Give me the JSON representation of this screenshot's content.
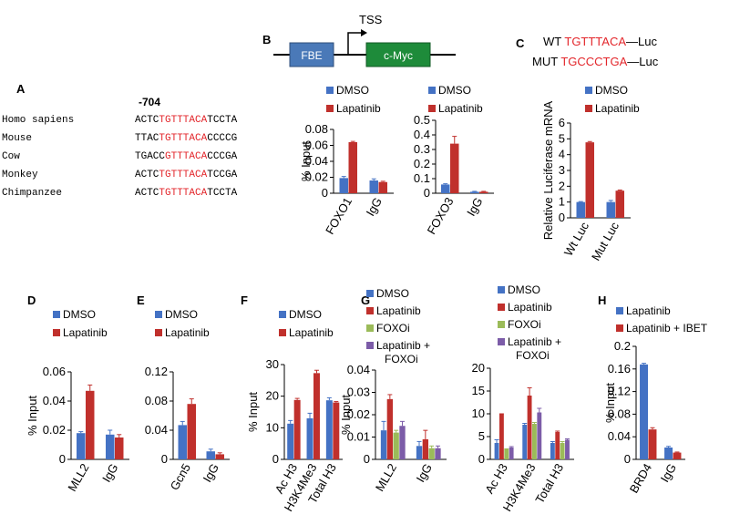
{
  "colors": {
    "dmso": "#4472c4",
    "lapatinib": "#c0302c",
    "foxoi": "#9bbb59",
    "combo": "#7c5ca8",
    "motif": "#e3262b",
    "fbe_box": "#4a79b8",
    "myc_box": "#1e8b3a"
  },
  "panel_letters": {
    "a": "A",
    "b": "B",
    "c": "C",
    "d": "D",
    "e": "E",
    "f": "F",
    "g": "G",
    "h": "H"
  },
  "panel_a": {
    "position_label": "-704",
    "species": [
      {
        "name": "Homo sapiens",
        "pre": "ACTC",
        "motif": "TGTTTACA",
        "post": "TCCTA"
      },
      {
        "name": "Mouse",
        "pre": "TTAC",
        "motif": "TGTTTACA",
        "post": "CCCCG"
      },
      {
        "name": "Cow",
        "pre": "TGACC",
        "motif": "GTTTACA",
        "post": "CCCGA"
      },
      {
        "name": "Monkey",
        "pre": "ACTC",
        "motif": "TGTTTACA",
        "post": "TCCGA"
      },
      {
        "name": "Chimpanzee",
        "pre": "ACTC",
        "motif": "TGTTTACA",
        "post": "TCCTA"
      }
    ]
  },
  "panel_b": {
    "fbe": "FBE",
    "tss": "TSS",
    "gene": "c-Myc"
  },
  "panel_c": {
    "wt": {
      "label": "WT",
      "seq": "TGTTTACA",
      "suffix": "Luc"
    },
    "mut": {
      "label": "MUT",
      "seq": "TGCCCTGA",
      "suffix": "Luc"
    }
  },
  "chart_data": [
    {
      "id": "a_foxo1",
      "type": "bar",
      "ylabel": "% Input",
      "ylim": [
        0,
        0.08
      ],
      "ticks": [
        "0",
        "0.02",
        "0.04",
        "0.06",
        "0.08"
      ],
      "categories": [
        "FOXO1",
        "IgG"
      ],
      "series": [
        {
          "name": "DMSO",
          "values": [
            0.019,
            0.016
          ],
          "errors": [
            0.002,
            0.002
          ]
        },
        {
          "name": "Lapatinib",
          "values": [
            0.064,
            0.014
          ],
          "errors": [
            0.001,
            0.001
          ]
        }
      ]
    },
    {
      "id": "a_foxo3",
      "type": "bar",
      "ylabel": "",
      "ylim": [
        0,
        0.5
      ],
      "ticks": [
        "0",
        "0.1",
        "0.2",
        "0.3",
        "0.4",
        "0.5"
      ],
      "categories": [
        "FOXO3",
        "IgG"
      ],
      "series": [
        {
          "name": "DMSO",
          "values": [
            0.06,
            0.01
          ],
          "errors": [
            0.005,
            0.003
          ]
        },
        {
          "name": "Lapatinib",
          "values": [
            0.34,
            0.01
          ],
          "errors": [
            0.05,
            0.003
          ]
        }
      ]
    },
    {
      "id": "c_luc",
      "type": "bar",
      "ylabel": "Relative Luciferase mRNA",
      "ylim": [
        0,
        6
      ],
      "ticks": [
        "0",
        "1",
        "2",
        "3",
        "4",
        "5",
        "6"
      ],
      "categories": [
        "Wt Luc",
        "Mut Luc"
      ],
      "series": [
        {
          "name": "DMSO",
          "values": [
            1.0,
            1.0
          ],
          "errors": [
            0.03,
            0.1
          ]
        },
        {
          "name": "Lapatinib",
          "values": [
            4.78,
            1.72
          ],
          "errors": [
            0.05,
            0.04
          ]
        }
      ]
    },
    {
      "id": "d_mll2",
      "type": "bar",
      "ylabel": "% Input",
      "ylim": [
        0,
        0.06
      ],
      "ticks": [
        "0",
        "0.02",
        "0.04",
        "0.06"
      ],
      "categories": [
        "MLL2",
        "IgG"
      ],
      "series": [
        {
          "name": "DMSO",
          "values": [
            0.018,
            0.017
          ],
          "errors": [
            0.001,
            0.003
          ]
        },
        {
          "name": "Lapatinib",
          "values": [
            0.047,
            0.015
          ],
          "errors": [
            0.004,
            0.002
          ]
        }
      ]
    },
    {
      "id": "e_gcn5",
      "type": "bar",
      "ylabel": "",
      "ylim": [
        0,
        0.12
      ],
      "ticks": [
        "0",
        "0.04",
        "0.08",
        "0.12"
      ],
      "categories": [
        "Gcn5",
        "IgG"
      ],
      "series": [
        {
          "name": "DMSO",
          "values": [
            0.047,
            0.011
          ],
          "errors": [
            0.005,
            0.003
          ]
        },
        {
          "name": "Lapatinib",
          "values": [
            0.076,
            0.007
          ],
          "errors": [
            0.007,
            0.002
          ]
        }
      ]
    },
    {
      "id": "f_histone",
      "type": "bar",
      "ylabel": "% Input",
      "ylim": [
        0,
        30
      ],
      "ticks": [
        "0",
        "10",
        "20",
        "30"
      ],
      "categories": [
        "Ac H3",
        "H3K4Me3",
        "Total H3"
      ],
      "series": [
        {
          "name": "DMSO",
          "values": [
            11.3,
            13.0,
            18.7
          ],
          "errors": [
            1.0,
            1.6,
            0.8
          ]
        },
        {
          "name": "Lapatinib",
          "values": [
            18.8,
            27.3,
            18.0
          ],
          "errors": [
            0.5,
            0.9,
            0.3
          ]
        }
      ]
    },
    {
      "id": "g_mll2",
      "type": "bar",
      "ylabel": "% Input",
      "ylim": [
        0,
        0.04
      ],
      "ticks": [
        "0",
        "0.01",
        "0.02",
        "0.03",
        "0.04"
      ],
      "categories": [
        "MLL2",
        "IgG"
      ],
      "series": [
        {
          "name": "DMSO",
          "values": [
            0.013,
            0.006
          ],
          "errors": [
            0.004,
            0.002
          ]
        },
        {
          "name": "Lapatinib",
          "values": [
            0.027,
            0.009
          ],
          "errors": [
            0.002,
            0.004
          ]
        },
        {
          "name": "FOXOi",
          "values": [
            0.012,
            0.005
          ],
          "errors": [
            0.001,
            0.001
          ]
        },
        {
          "name": "Lapatinib + FOXOi",
          "values": [
            0.015,
            0.005
          ],
          "errors": [
            0.002,
            0.001
          ]
        }
      ]
    },
    {
      "id": "g_histone",
      "type": "bar",
      "ylabel": "",
      "ylim": [
        0,
        20
      ],
      "ticks": [
        "0",
        "5",
        "10",
        "15",
        "20"
      ],
      "categories": [
        "Ac H3",
        "H3K4Me3",
        "Total H3"
      ],
      "series": [
        {
          "name": "DMSO",
          "values": [
            3.6,
            7.6,
            3.6
          ],
          "errors": [
            0.7,
            0.3,
            0.3
          ]
        },
        {
          "name": "Lapatinib",
          "values": [
            9.9,
            14.0,
            6.0
          ],
          "errors": [
            0.1,
            1.7,
            0.2
          ]
        },
        {
          "name": "FOXOi",
          "values": [
            2.2,
            7.8,
            3.6
          ],
          "errors": [
            0.1,
            0.3,
            0.3
          ]
        },
        {
          "name": "Lapatinib + FOXOi",
          "values": [
            2.6,
            10.3,
            4.3
          ],
          "errors": [
            0.2,
            0.9,
            0.2
          ]
        }
      ]
    },
    {
      "id": "h_brd4",
      "type": "bar",
      "ylabel": "% Input",
      "ylim": [
        0,
        0.2
      ],
      "ticks": [
        "0",
        "0.04",
        "0.08",
        "0.12",
        "0.16",
        "0.2"
      ],
      "categories": [
        "BRD4",
        "IgG"
      ],
      "series": [
        {
          "name": "Lapatinib",
          "values": [
            0.168,
            0.021
          ],
          "errors": [
            0.002,
            0.002
          ]
        },
        {
          "name": "Lapatinib + IBET",
          "values": [
            0.053,
            0.012
          ],
          "errors": [
            0.003,
            0.001
          ]
        }
      ]
    }
  ]
}
